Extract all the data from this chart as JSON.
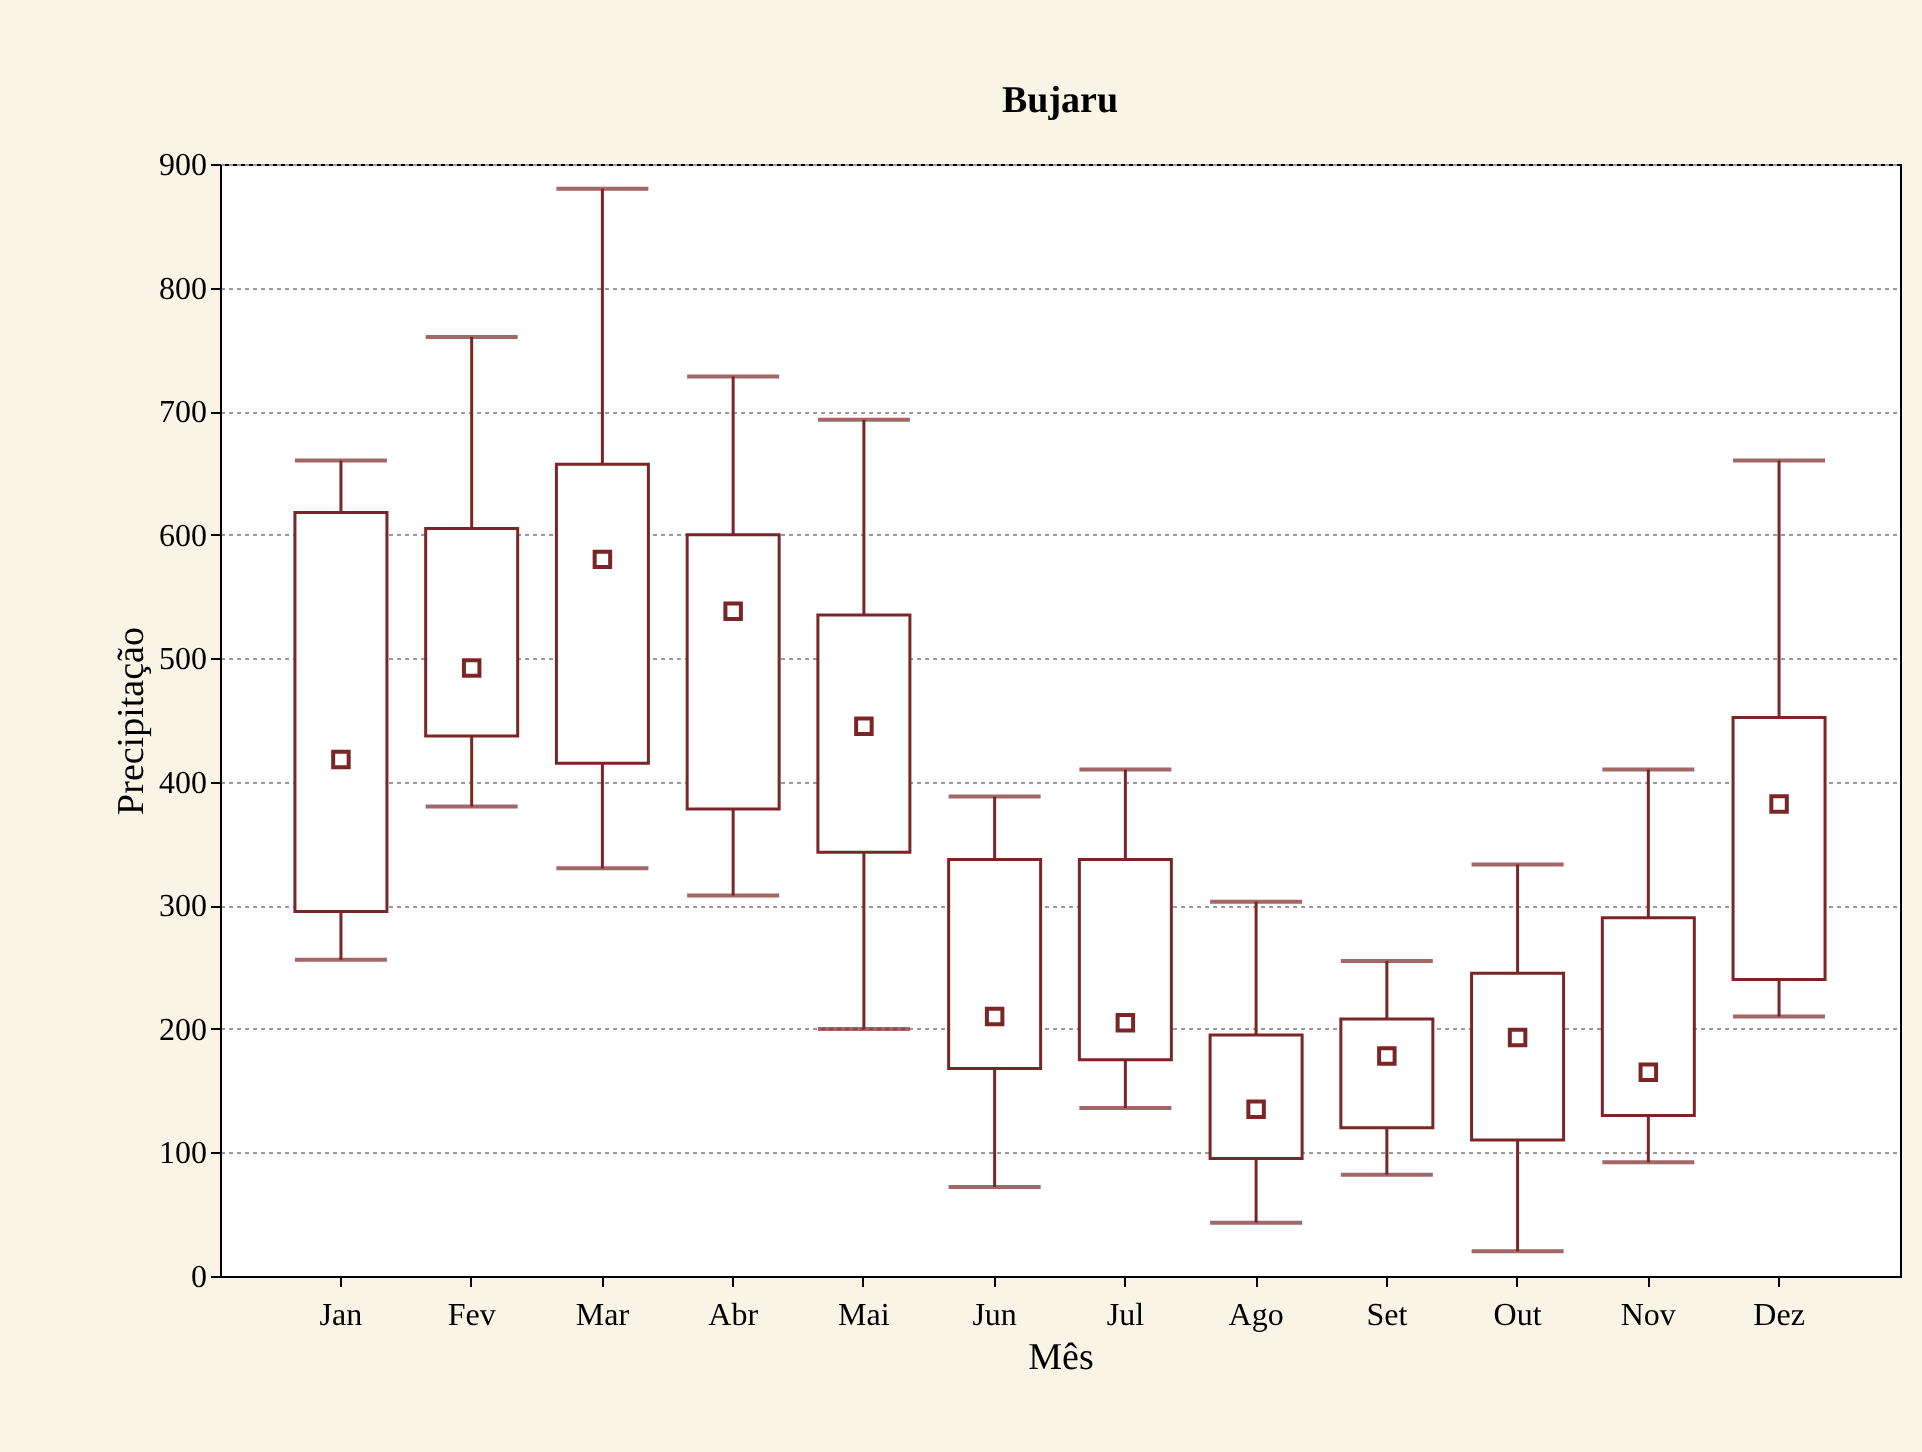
{
  "chart_data": {
    "type": "box",
    "title": "Bujaru",
    "xlabel": "Mês",
    "ylabel": "Precipitação",
    "categories": [
      "Jan",
      "Fev",
      "Mar",
      "Abr",
      "Mai",
      "Jun",
      "Jul",
      "Ago",
      "Set",
      "Out",
      "Nov",
      "Dez"
    ],
    "boxes": [
      {
        "low": 256,
        "q1": 295,
        "median": 418,
        "q3": 618,
        "high": 660
      },
      {
        "low": 380,
        "q1": 437,
        "median": 492,
        "q3": 605,
        "high": 760
      },
      {
        "low": 330,
        "q1": 415,
        "median": 580,
        "q3": 657,
        "high": 880
      },
      {
        "low": 308,
        "q1": 378,
        "median": 538,
        "q3": 600,
        "high": 728
      },
      {
        "low": 200,
        "q1": 343,
        "median": 445,
        "q3": 535,
        "high": 693
      },
      {
        "low": 72,
        "q1": 168,
        "median": 210,
        "q3": 337,
        "high": 388
      },
      {
        "low": 136,
        "q1": 175,
        "median": 205,
        "q3": 337,
        "high": 410
      },
      {
        "low": 43,
        "q1": 95,
        "median": 135,
        "q3": 195,
        "high": 303
      },
      {
        "low": 82,
        "q1": 120,
        "median": 178,
        "q3": 208,
        "high": 255
      },
      {
        "low": 20,
        "q1": 110,
        "median": 193,
        "q3": 245,
        "high": 333
      },
      {
        "low": 92,
        "q1": 130,
        "median": 165,
        "q3": 290,
        "high": 410
      },
      {
        "low": 210,
        "q1": 240,
        "median": 382,
        "q3": 452,
        "high": 660
      }
    ],
    "color": "#7a2626",
    "ylim": [
      0,
      900
    ],
    "yticks": [
      0,
      100,
      200,
      300,
      400,
      500,
      600,
      700,
      800,
      900
    ],
    "grid": "y",
    "marker": "square"
  }
}
